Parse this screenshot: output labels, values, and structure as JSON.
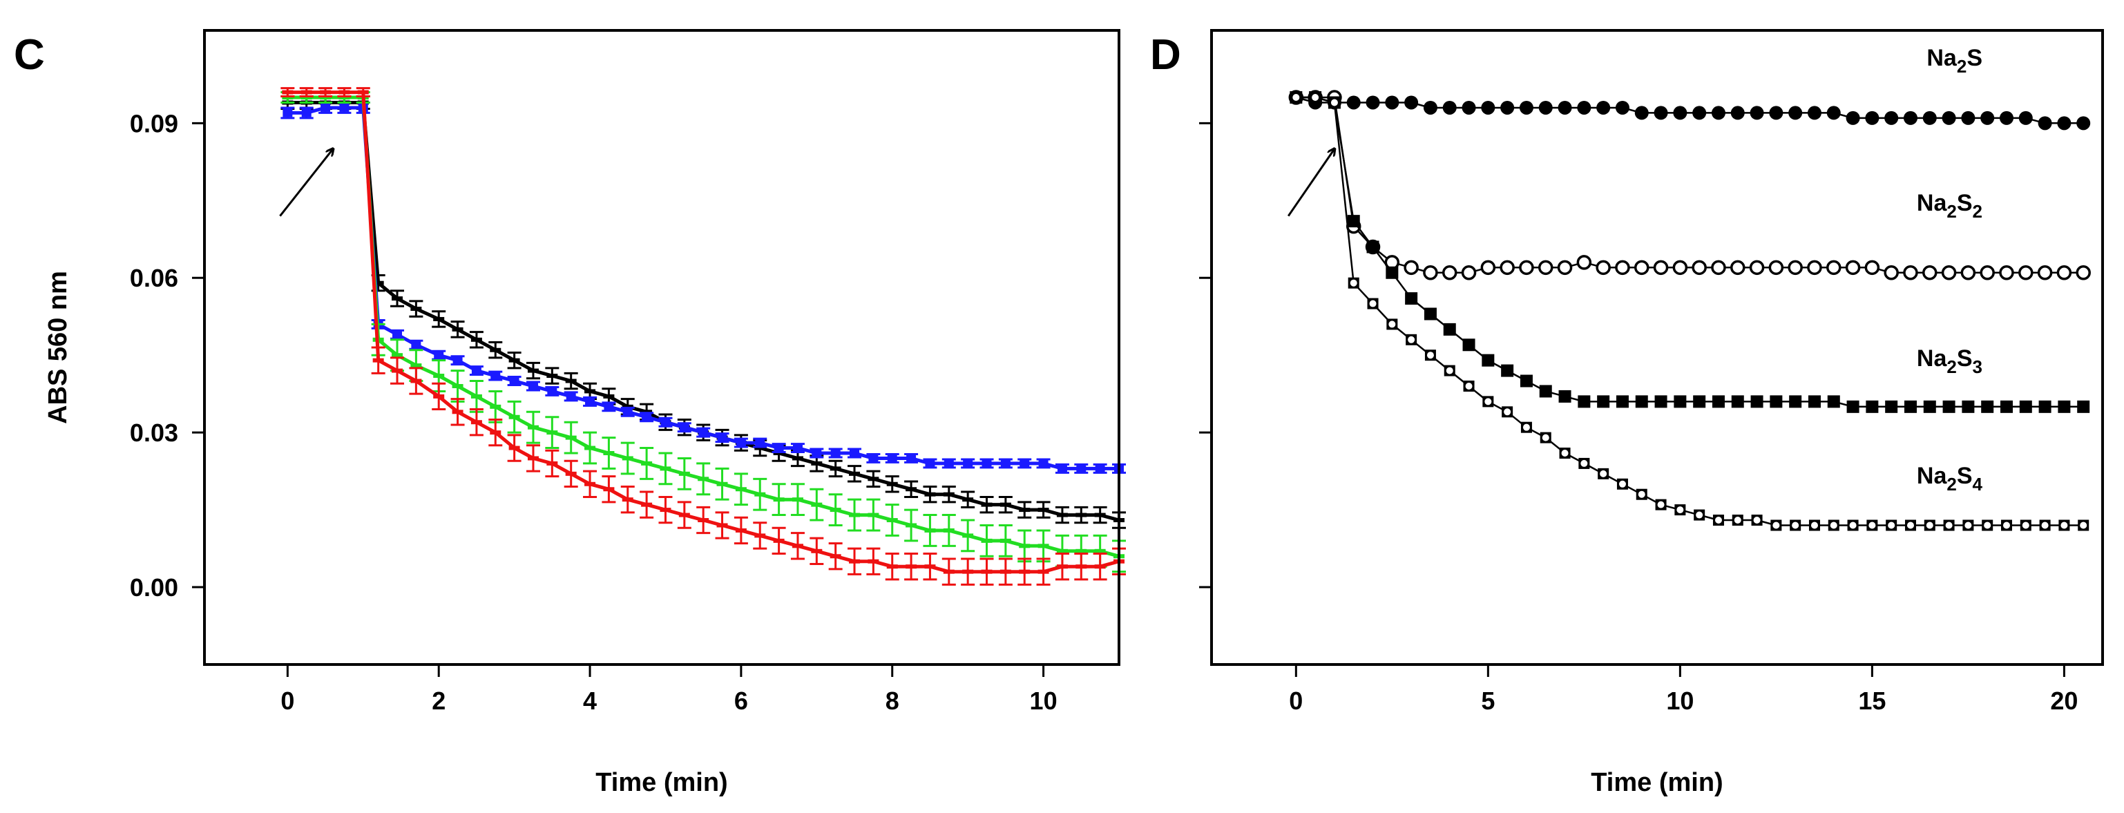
{
  "chart_data": [
    {
      "type": "line",
      "panel_label": "C",
      "xlabel": "Time (min)",
      "ylabel": "ABS 560 nm",
      "xlim": [
        -1.1,
        11
      ],
      "ylim": [
        -0.015,
        0.108
      ],
      "xticks": [
        0,
        2,
        4,
        6,
        8,
        10
      ],
      "yticks": [
        0.0,
        0.03,
        0.06,
        0.09
      ],
      "ytick_labels": [
        "0.00",
        "0.03",
        "0.06",
        "0.09"
      ],
      "annotations": [
        {
          "type": "arrow",
          "from": [
            -0.1,
            0.072
          ],
          "to": [
            0.6,
            0.085
          ]
        }
      ],
      "series": [
        {
          "color": "#000000",
          "marker": "dash",
          "x": [
            0,
            0.25,
            0.5,
            0.75,
            1.0,
            1.2,
            1.45,
            1.7,
            2.0,
            2.25,
            2.5,
            2.75,
            3.0,
            3.25,
            3.5,
            3.75,
            4.0,
            4.25,
            4.5,
            4.75,
            5.0,
            5.25,
            5.5,
            5.75,
            6.0,
            6.25,
            6.5,
            6.75,
            7.0,
            7.25,
            7.5,
            7.75,
            8.0,
            8.25,
            8.5,
            8.75,
            9.0,
            9.25,
            9.5,
            9.75,
            10.0,
            10.25,
            10.5,
            10.75,
            11.0
          ],
          "values": [
            0.094,
            0.094,
            0.094,
            0.094,
            0.094,
            0.059,
            0.056,
            0.054,
            0.052,
            0.05,
            0.048,
            0.046,
            0.044,
            0.042,
            0.041,
            0.04,
            0.038,
            0.037,
            0.035,
            0.034,
            0.032,
            0.031,
            0.03,
            0.029,
            0.028,
            0.027,
            0.026,
            0.025,
            0.024,
            0.023,
            0.022,
            0.021,
            0.02,
            0.019,
            0.018,
            0.018,
            0.017,
            0.016,
            0.016,
            0.015,
            0.015,
            0.014,
            0.014,
            0.014,
            0.013
          ],
          "errors": [
            0.0012,
            0.0012,
            0.0012,
            0.0012,
            0.0012,
            0.0015,
            0.0015,
            0.0015,
            0.0015,
            0.0015,
            0.0015,
            0.0015,
            0.0015,
            0.0015,
            0.0015,
            0.0015,
            0.0015,
            0.0015,
            0.0015,
            0.0015,
            0.0015,
            0.0015,
            0.0015,
            0.0015,
            0.0015,
            0.0015,
            0.0015,
            0.0015,
            0.0015,
            0.0015,
            0.0015,
            0.0015,
            0.0015,
            0.0015,
            0.0015,
            0.0015,
            0.0015,
            0.0015,
            0.0015,
            0.0015,
            0.0015,
            0.0015,
            0.0015,
            0.0015,
            0.0015
          ]
        },
        {
          "color": "#1a1aff",
          "marker": "square",
          "x": [
            0,
            0.25,
            0.5,
            0.75,
            1.0,
            1.2,
            1.45,
            1.7,
            2.0,
            2.25,
            2.5,
            2.75,
            3.0,
            3.25,
            3.5,
            3.75,
            4.0,
            4.25,
            4.5,
            4.75,
            5.0,
            5.25,
            5.5,
            5.75,
            6.0,
            6.25,
            6.5,
            6.75,
            7.0,
            7.25,
            7.5,
            7.75,
            8.0,
            8.25,
            8.5,
            8.75,
            9.0,
            9.25,
            9.5,
            9.75,
            10.0,
            10.25,
            10.5,
            10.75,
            11.0
          ],
          "values": [
            0.092,
            0.092,
            0.093,
            0.093,
            0.093,
            0.051,
            0.049,
            0.047,
            0.045,
            0.044,
            0.042,
            0.041,
            0.04,
            0.039,
            0.038,
            0.037,
            0.036,
            0.035,
            0.034,
            0.033,
            0.032,
            0.031,
            0.03,
            0.029,
            0.028,
            0.028,
            0.027,
            0.027,
            0.026,
            0.026,
            0.026,
            0.025,
            0.025,
            0.025,
            0.024,
            0.024,
            0.024,
            0.024,
            0.024,
            0.024,
            0.024,
            0.023,
            0.023,
            0.023,
            0.023
          ],
          "errors": [
            0.001,
            0.001,
            0.001,
            0.001,
            0.001,
            0.0008,
            0.0008,
            0.0008,
            0.0008,
            0.0008,
            0.0008,
            0.0008,
            0.0008,
            0.0008,
            0.0008,
            0.0008,
            0.0008,
            0.0008,
            0.0008,
            0.0008,
            0.0008,
            0.0008,
            0.0008,
            0.0008,
            0.0008,
            0.0008,
            0.0008,
            0.0008,
            0.0008,
            0.0008,
            0.0008,
            0.0008,
            0.0008,
            0.0008,
            0.0008,
            0.0008,
            0.0008,
            0.0008,
            0.0008,
            0.0008,
            0.0008,
            0.0008,
            0.0008,
            0.0008,
            0.0008
          ]
        },
        {
          "color": "#22dd22",
          "marker": "dash",
          "x": [
            0,
            0.25,
            0.5,
            0.75,
            1.0,
            1.2,
            1.45,
            1.7,
            2.0,
            2.25,
            2.5,
            2.75,
            3.0,
            3.25,
            3.5,
            3.75,
            4.0,
            4.25,
            4.5,
            4.75,
            5.0,
            5.25,
            5.5,
            5.75,
            6.0,
            6.25,
            6.5,
            6.75,
            7.0,
            7.25,
            7.5,
            7.75,
            8.0,
            8.25,
            8.5,
            8.75,
            9.0,
            9.25,
            9.5,
            9.75,
            10.0,
            10.25,
            10.5,
            10.75,
            11.0
          ],
          "values": [
            0.095,
            0.095,
            0.095,
            0.095,
            0.095,
            0.048,
            0.045,
            0.043,
            0.041,
            0.039,
            0.037,
            0.035,
            0.033,
            0.031,
            0.03,
            0.029,
            0.027,
            0.026,
            0.025,
            0.024,
            0.023,
            0.022,
            0.021,
            0.02,
            0.019,
            0.018,
            0.017,
            0.017,
            0.016,
            0.015,
            0.014,
            0.014,
            0.013,
            0.012,
            0.011,
            0.011,
            0.01,
            0.009,
            0.009,
            0.008,
            0.008,
            0.007,
            0.007,
            0.007,
            0.006
          ],
          "errors": [
            0.001,
            0.001,
            0.001,
            0.001,
            0.001,
            0.003,
            0.003,
            0.003,
            0.003,
            0.003,
            0.003,
            0.003,
            0.003,
            0.003,
            0.003,
            0.003,
            0.003,
            0.003,
            0.003,
            0.003,
            0.003,
            0.003,
            0.003,
            0.003,
            0.003,
            0.003,
            0.003,
            0.003,
            0.003,
            0.003,
            0.003,
            0.003,
            0.003,
            0.003,
            0.003,
            0.003,
            0.003,
            0.003,
            0.003,
            0.003,
            0.003,
            0.003,
            0.003,
            0.003,
            0.003
          ]
        },
        {
          "color": "#ee1111",
          "marker": "dash",
          "x": [
            0,
            0.25,
            0.5,
            0.75,
            1.0,
            1.2,
            1.45,
            1.7,
            2.0,
            2.25,
            2.5,
            2.75,
            3.0,
            3.25,
            3.5,
            3.75,
            4.0,
            4.25,
            4.5,
            4.75,
            5.0,
            5.25,
            5.5,
            5.75,
            6.0,
            6.25,
            6.5,
            6.75,
            7.0,
            7.25,
            7.5,
            7.75,
            8.0,
            8.25,
            8.5,
            8.75,
            9.0,
            9.25,
            9.5,
            9.75,
            10.0,
            10.25,
            10.5,
            10.75,
            11.0
          ],
          "values": [
            0.096,
            0.096,
            0.096,
            0.096,
            0.096,
            0.044,
            0.042,
            0.04,
            0.037,
            0.034,
            0.032,
            0.03,
            0.027,
            0.025,
            0.024,
            0.022,
            0.02,
            0.019,
            0.017,
            0.016,
            0.015,
            0.014,
            0.013,
            0.012,
            0.011,
            0.01,
            0.009,
            0.008,
            0.007,
            0.006,
            0.005,
            0.005,
            0.004,
            0.004,
            0.004,
            0.003,
            0.003,
            0.003,
            0.003,
            0.003,
            0.003,
            0.004,
            0.004,
            0.004,
            0.005
          ],
          "errors": [
            0.0008,
            0.0008,
            0.0008,
            0.0008,
            0.0008,
            0.0025,
            0.0025,
            0.0025,
            0.0025,
            0.0025,
            0.0025,
            0.0025,
            0.0025,
            0.0025,
            0.0025,
            0.0025,
            0.0025,
            0.0025,
            0.0025,
            0.0025,
            0.0025,
            0.0025,
            0.0025,
            0.0025,
            0.0025,
            0.0025,
            0.0025,
            0.0025,
            0.0025,
            0.0025,
            0.0025,
            0.0025,
            0.0025,
            0.0025,
            0.0025,
            0.0025,
            0.0025,
            0.0025,
            0.0025,
            0.0025,
            0.0025,
            0.0025,
            0.0025,
            0.0025,
            0.0025
          ]
        }
      ]
    },
    {
      "type": "scatter",
      "panel_label": "D",
      "xlabel": "Time (min)",
      "ylabel": "",
      "xlim": [
        -2.2,
        21
      ],
      "ylim": [
        -0.015,
        0.108
      ],
      "xticks": [
        0,
        5,
        10,
        15,
        20
      ],
      "yticks": [
        0.0,
        0.03,
        0.06,
        0.09
      ],
      "annotations": [
        {
          "type": "arrow",
          "from": [
            -0.2,
            0.072
          ],
          "to": [
            1.0,
            0.085
          ]
        }
      ],
      "series": [
        {
          "label_parts": [
            "Na",
            "2",
            "S",
            "",
            ""
          ],
          "marker": "filled-circle",
          "x": [
            0,
            0.5,
            1.0,
            1.5,
            2.0,
            2.5,
            3.0,
            3.5,
            4.0,
            4.5,
            5.0,
            5.5,
            6.0,
            6.5,
            7.0,
            7.5,
            8.0,
            8.5,
            9.0,
            9.5,
            10.0,
            10.5,
            11.0,
            11.5,
            12.0,
            12.5,
            13.0,
            13.5,
            14.0,
            14.5,
            15.0,
            15.5,
            16.0,
            16.5,
            17.0,
            17.5,
            18.0,
            18.5,
            19.0,
            19.5,
            20.0,
            20.5
          ],
          "values": [
            0.095,
            0.094,
            0.094,
            0.094,
            0.094,
            0.094,
            0.094,
            0.093,
            0.093,
            0.093,
            0.093,
            0.093,
            0.093,
            0.093,
            0.093,
            0.093,
            0.093,
            0.093,
            0.092,
            0.092,
            0.092,
            0.092,
            0.092,
            0.092,
            0.092,
            0.092,
            0.092,
            0.092,
            0.092,
            0.091,
            0.091,
            0.091,
            0.091,
            0.091,
            0.091,
            0.091,
            0.091,
            0.091,
            0.091,
            0.09,
            0.09,
            0.09
          ]
        },
        {
          "label_parts": [
            "Na",
            "2",
            "S",
            "2",
            ""
          ],
          "marker": "open-circle",
          "x": [
            0,
            0.5,
            1.0,
            1.5,
            2.0,
            2.5,
            3.0,
            3.5,
            4.0,
            4.5,
            5.0,
            5.5,
            6.0,
            6.5,
            7.0,
            7.5,
            8.0,
            8.5,
            9.0,
            9.5,
            10.0,
            10.5,
            11.0,
            11.5,
            12.0,
            12.5,
            13.0,
            13.5,
            14.0,
            14.5,
            15.0,
            15.5,
            16.0,
            16.5,
            17.0,
            17.5,
            18.0,
            18.5,
            19.0,
            19.5,
            20.0,
            20.5
          ],
          "values": [
            0.095,
            0.095,
            0.095,
            0.07,
            0.066,
            0.063,
            0.062,
            0.061,
            0.061,
            0.061,
            0.062,
            0.062,
            0.062,
            0.062,
            0.062,
            0.063,
            0.062,
            0.062,
            0.062,
            0.062,
            0.062,
            0.062,
            0.062,
            0.062,
            0.062,
            0.062,
            0.062,
            0.062,
            0.062,
            0.062,
            0.062,
            0.061,
            0.061,
            0.061,
            0.061,
            0.061,
            0.061,
            0.061,
            0.061,
            0.061,
            0.061,
            0.061
          ]
        },
        {
          "label_parts": [
            "Na",
            "2",
            "S",
            "3",
            ""
          ],
          "marker": "filled-square",
          "x": [
            0,
            0.5,
            1.0,
            1.5,
            2.0,
            2.5,
            3.0,
            3.5,
            4.0,
            4.5,
            5.0,
            5.5,
            6.0,
            6.5,
            7.0,
            7.5,
            8.0,
            8.5,
            9.0,
            9.5,
            10.0,
            10.5,
            11.0,
            11.5,
            12.0,
            12.5,
            13.0,
            13.5,
            14.0,
            14.5,
            15.0,
            15.5,
            16.0,
            16.5,
            17.0,
            17.5,
            18.0,
            18.5,
            19.0,
            19.5,
            20.0,
            20.5
          ],
          "values": [
            0.095,
            0.095,
            0.094,
            0.071,
            0.066,
            0.061,
            0.056,
            0.053,
            0.05,
            0.047,
            0.044,
            0.042,
            0.04,
            0.038,
            0.037,
            0.036,
            0.036,
            0.036,
            0.036,
            0.036,
            0.036,
            0.036,
            0.036,
            0.036,
            0.036,
            0.036,
            0.036,
            0.036,
            0.036,
            0.035,
            0.035,
            0.035,
            0.035,
            0.035,
            0.035,
            0.035,
            0.035,
            0.035,
            0.035,
            0.035,
            0.035,
            0.035
          ]
        },
        {
          "label_parts": [
            "Na",
            "2",
            "S",
            "4",
            ""
          ],
          "marker": "open-square",
          "x": [
            0,
            0.5,
            1.0,
            1.5,
            2.0,
            2.5,
            3.0,
            3.5,
            4.0,
            4.5,
            5.0,
            5.5,
            6.0,
            6.5,
            7.0,
            7.5,
            8.0,
            8.5,
            9.0,
            9.5,
            10.0,
            10.5,
            11.0,
            11.5,
            12.0,
            12.5,
            13.0,
            13.5,
            14.0,
            14.5,
            15.0,
            15.5,
            16.0,
            16.5,
            17.0,
            17.5,
            18.0,
            18.5,
            19.0,
            19.5,
            20.0,
            20.5
          ],
          "values": [
            0.095,
            0.095,
            0.094,
            0.059,
            0.055,
            0.051,
            0.048,
            0.045,
            0.042,
            0.039,
            0.036,
            0.034,
            0.031,
            0.029,
            0.026,
            0.024,
            0.022,
            0.02,
            0.018,
            0.016,
            0.015,
            0.014,
            0.013,
            0.013,
            0.013,
            0.012,
            0.012,
            0.012,
            0.012,
            0.012,
            0.012,
            0.012,
            0.012,
            0.012,
            0.012,
            0.012,
            0.012,
            0.012,
            0.012,
            0.012,
            0.012,
            0.012
          ]
        }
      ]
    }
  ]
}
